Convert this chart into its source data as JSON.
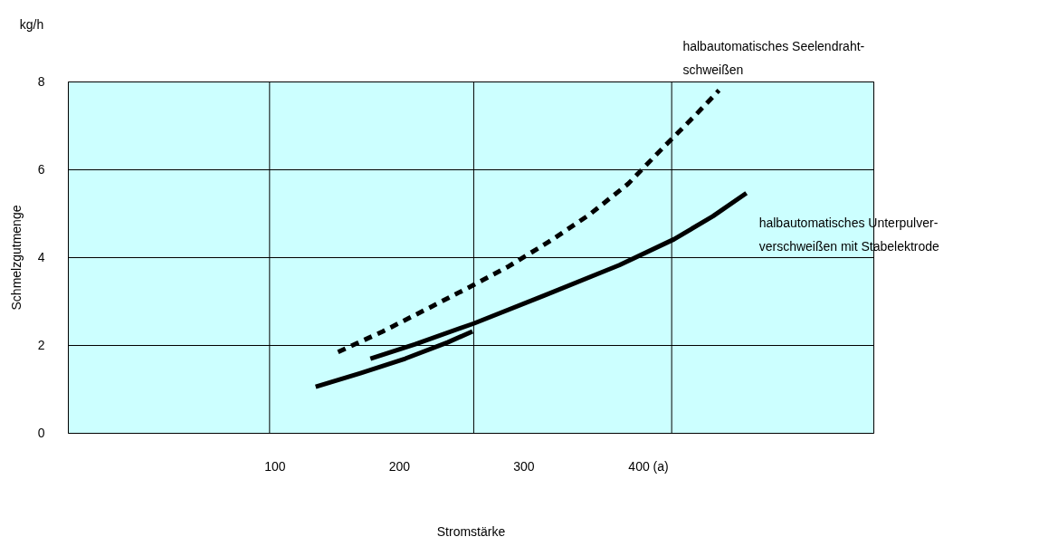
{
  "chart_data": {
    "type": "line",
    "xlabel": "Stromstärke",
    "ylabel": "Schmelzgutmenge",
    "annotations": [
      "kg/h"
    ],
    "xlim": [
      -66,
      581
    ],
    "xticks": [
      100,
      200,
      300,
      {
        "value": 400,
        "label": "400 (a)"
      }
    ],
    "ylim": [
      0,
      8
    ],
    "yticks": [
      0,
      2,
      4,
      6,
      8
    ],
    "grid": "y",
    "ref_lines": [
      {
        "axis": "x",
        "value": 96,
        "color": "#000000"
      },
      {
        "axis": "x",
        "value": 260,
        "color": "#000000"
      },
      {
        "axis": "x",
        "value": 419,
        "color": "#000000"
      }
    ],
    "series": [
      {
        "name": "halbautomatisches Seelendraht-\nschweißen",
        "color": "#000000",
        "line_style": "dashed",
        "x": [
          151,
          187,
          221,
          256,
          288,
          322,
          353,
          384,
          413,
          439,
          457
        ],
        "values": [
          1.84,
          2.31,
          2.8,
          3.31,
          3.79,
          4.38,
          4.97,
          5.67,
          6.52,
          7.26,
          7.8
        ]
      },
      {
        "name": "halbautomatisches Unterpulver-\nverschweißen mit Stabelektrode",
        "color": "#000000",
        "line_style": "solid",
        "x": [
          177,
          213,
          260,
          317,
          377,
          421,
          452,
          479
        ],
        "values": [
          1.69,
          2.02,
          2.49,
          3.13,
          3.82,
          4.41,
          4.93,
          5.46
        ]
      },
      {
        "color": "#000000",
        "line_style": "solid",
        "x": [
          133,
          169,
          205,
          239,
          259
        ],
        "values": [
          1.05,
          1.36,
          1.69,
          2.06,
          2.31
        ]
      }
    ]
  }
}
